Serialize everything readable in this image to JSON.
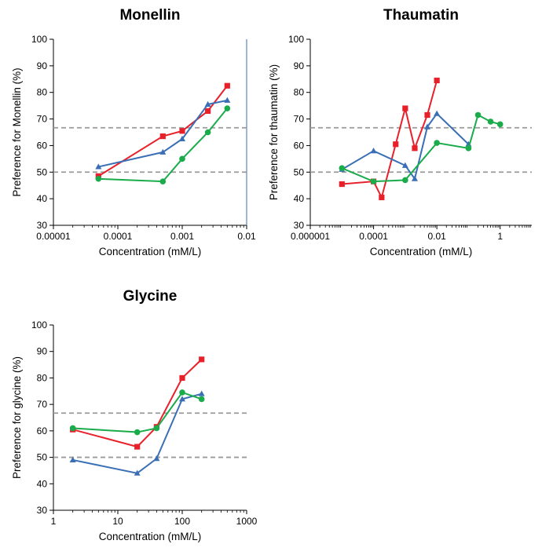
{
  "chart_data": [
    {
      "type": "line",
      "title": "Monellin",
      "xlabel": "Concentration (mM/L)",
      "ylabel": "Preference for Monellin (%)",
      "xscale": "log",
      "xlim": [
        1e-05,
        0.01
      ],
      "ylim": [
        30,
        100
      ],
      "xticks": [
        "0.00001",
        "0.0001",
        "0.001",
        "0.01"
      ],
      "yticks": [
        "30",
        "40",
        "50",
        "60",
        "70",
        "80",
        "90",
        "100"
      ],
      "reference_lines": [
        50,
        66.7
      ],
      "series": [
        {
          "color": "#e8202a",
          "marker": "square",
          "x": [
            5e-05,
            0.0005,
            0.001,
            0.0025,
            0.005
          ],
          "y": [
            48.5,
            63.5,
            65.5,
            73,
            82.5
          ]
        },
        {
          "color": "#3a6fb5",
          "marker": "triangle",
          "x": [
            5e-05,
            0.0005,
            0.001,
            0.0025,
            0.005
          ],
          "y": [
            52,
            57.5,
            62.5,
            75.5,
            77
          ]
        },
        {
          "color": "#1aab4b",
          "marker": "circle",
          "x": [
            5e-05,
            0.0005,
            0.001,
            0.0025,
            0.005
          ],
          "y": [
            47.5,
            46.5,
            55,
            65,
            74
          ]
        }
      ]
    },
    {
      "type": "line",
      "title": "Thaumatin",
      "xlabel": "Concentration (mM/L)",
      "ylabel": "Preference for thaumatin (%)",
      "xscale": "log",
      "xlim": [
        1e-06,
        10
      ],
      "ylim": [
        30,
        100
      ],
      "xticks": [
        "0.000001",
        "0.0001",
        "0.01",
        "1"
      ],
      "yticks": [
        "30",
        "40",
        "50",
        "60",
        "70",
        "80",
        "90",
        "100"
      ],
      "reference_lines": [
        50,
        66.7
      ],
      "series": [
        {
          "color": "#e8202a",
          "marker": "square",
          "x": [
            1e-05,
            0.0001,
            0.00018,
            0.0005,
            0.001,
            0.002,
            0.005,
            0.01
          ],
          "y": [
            45.5,
            46.5,
            40.5,
            60.5,
            74,
            59,
            71.5,
            84.5
          ]
        },
        {
          "color": "#3a6fb5",
          "marker": "triangle",
          "x": [
            1e-05,
            0.0001,
            0.001,
            0.002,
            0.005,
            0.01,
            0.1
          ],
          "y": [
            51,
            58,
            52.5,
            47.5,
            67,
            72,
            60.5
          ]
        },
        {
          "color": "#1aab4b",
          "marker": "circle",
          "x": [
            1e-05,
            0.0001,
            0.001,
            0.01,
            0.1,
            0.2,
            0.5,
            1
          ],
          "y": [
            51.5,
            46.5,
            47,
            61,
            59,
            71.5,
            69,
            68
          ]
        }
      ]
    },
    {
      "type": "line",
      "title": "Glycine",
      "xlabel": "Concentration (mM/L)",
      "ylabel": "Preference for glycine (%)",
      "xscale": "log",
      "xlim": [
        1,
        1000
      ],
      "ylim": [
        30,
        100
      ],
      "xticks": [
        "1",
        "10",
        "100",
        "1000"
      ],
      "yticks": [
        "30",
        "40",
        "50",
        "60",
        "70",
        "80",
        "90",
        "100"
      ],
      "reference_lines": [
        50,
        66.7
      ],
      "series": [
        {
          "color": "#e8202a",
          "marker": "square",
          "x": [
            2,
            20,
            40,
            100,
            200
          ],
          "y": [
            60.5,
            54,
            61.5,
            80,
            87
          ]
        },
        {
          "color": "#3a6fb5",
          "marker": "triangle",
          "x": [
            2,
            20,
            40,
            100,
            200
          ],
          "y": [
            49,
            44,
            49.5,
            72,
            74
          ]
        },
        {
          "color": "#1aab4b",
          "marker": "circle",
          "x": [
            2,
            20,
            40,
            100,
            200
          ],
          "y": [
            61,
            59.5,
            61,
            74.5,
            72
          ]
        }
      ]
    }
  ]
}
